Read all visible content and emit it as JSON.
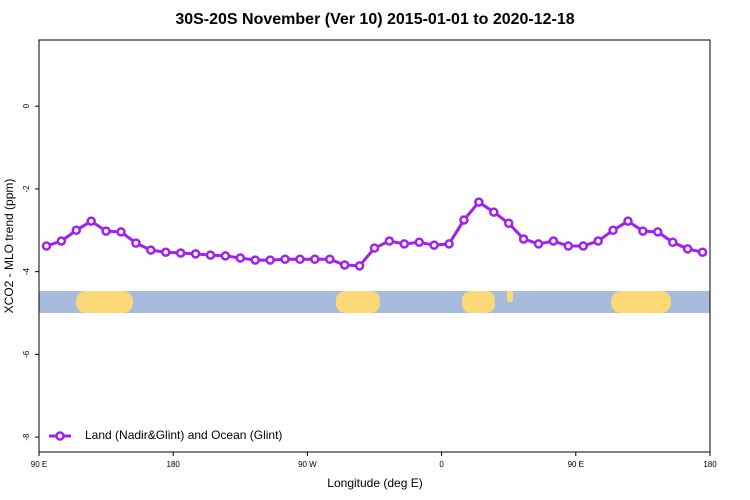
{
  "chart_data": {
    "type": "line",
    "title": "30S-20S November (Ver 10)   2015-01-01 to 2020-12-18",
    "x_label": "Longitude (deg E)",
    "y_label": "XCO2 - MLO trend (ppm)",
    "x": [
      95,
      105,
      115,
      125,
      135,
      145,
      155,
      165,
      175,
      185,
      195,
      205,
      215,
      225,
      235,
      245,
      255,
      265,
      275,
      285,
      295,
      305,
      315,
      325,
      335,
      345,
      355,
      365,
      375,
      385,
      395,
      405,
      415,
      425,
      435,
      445,
      455,
      465,
      475,
      485,
      495,
      505,
      515,
      525,
      535
    ],
    "series": [
      {
        "name": "Land (Nadir&Glint) and Ocean (Glint)",
        "color": "#a020f0",
        "values": [
          -3.38,
          -3.26,
          -3.0,
          -2.78,
          -3.02,
          -3.04,
          -3.31,
          -3.48,
          -3.53,
          -3.55,
          -3.57,
          -3.6,
          -3.62,
          -3.67,
          -3.72,
          -3.72,
          -3.7,
          -3.7,
          -3.7,
          -3.7,
          -3.84,
          -3.86,
          -3.43,
          -3.26,
          -3.33,
          -3.29,
          -3.36,
          -3.33,
          -2.75,
          -2.32,
          -2.56,
          -2.83,
          -3.21,
          -3.33,
          -3.26,
          -3.38,
          -3.38,
          -3.26,
          -3.0,
          -2.78,
          -3.02,
          -3.04,
          -3.29,
          -3.45,
          -3.53
        ]
      }
    ],
    "xlim": [
      90,
      540
    ],
    "xticks": [
      {
        "value": 90,
        "label": "90 E"
      },
      180,
      {
        "value": 270,
        "label": "90 W"
      },
      {
        "value": 360,
        "label": "0"
      },
      {
        "value": 450,
        "label": "90 E"
      },
      {
        "value": 540,
        "label": "180"
      }
    ],
    "ylim": [
      -8.36,
      1.6
    ],
    "yticks": [
      0,
      -2,
      -4,
      -6,
      -8
    ],
    "legend": "bottom-left"
  }
}
